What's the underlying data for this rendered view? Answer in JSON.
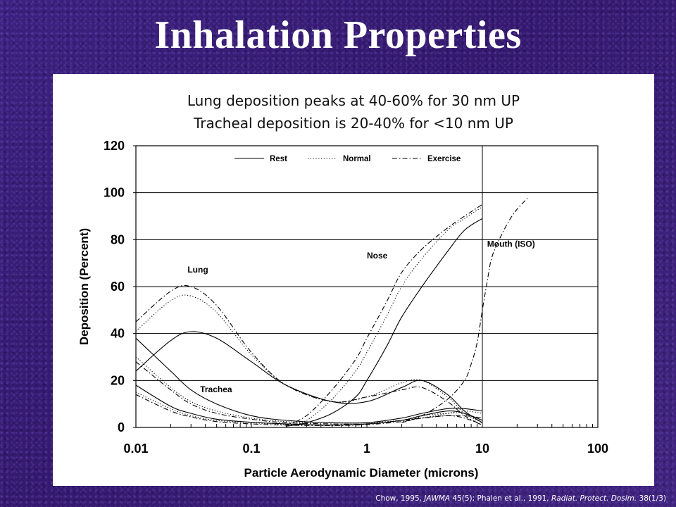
{
  "slide": {
    "title": "Inhalation Properties",
    "subtitle_lines": [
      "Lung deposition peaks at 40-60% for 30 nm UP",
      "Tracheal deposition is 20-40% for <10 nm UP"
    ],
    "citation": {
      "part1": "Chow, 1995, ",
      "journal1": "JAWMA",
      "part2": " 45(5); Phalen et al., 1991, ",
      "journal2": "Radiat. Protect. Dosim.",
      "part3": " 38(1/3)"
    }
  },
  "colors": {
    "background": "#3a1f78",
    "panel": "#ffffff",
    "line": "#000000"
  },
  "chart_data": {
    "type": "line",
    "xlabel": "Particle Aerodynamic Diameter (microns)",
    "ylabel": "Deposition (Percent)",
    "x_scale": "log",
    "xlim": [
      0.01,
      100
    ],
    "ylim": [
      0,
      120
    ],
    "x_ticks": [
      "0.01",
      "0.1",
      "1",
      "10",
      "100"
    ],
    "y_ticks": [
      "0",
      "20",
      "40",
      "60",
      "80",
      "100",
      "120"
    ],
    "grid": "horizontal",
    "legend": {
      "placement": "top",
      "entries": [
        {
          "label": "Rest",
          "style": "solid"
        },
        {
          "label": "Normal",
          "style": "dotted"
        },
        {
          "label": "Exercise",
          "style": "dashdot"
        }
      ]
    },
    "annotations": [
      {
        "text": "Lung",
        "x": 0.028,
        "y": 66
      },
      {
        "text": "Trachea",
        "x": 0.036,
        "y": 15
      },
      {
        "text": "Nose",
        "x": 1.0,
        "y": 72
      },
      {
        "text": "Mouth (ISO)",
        "x": 11,
        "y": 77
      }
    ],
    "series": [
      {
        "group": "Lung",
        "condition": "Rest",
        "style": "solid",
        "points": [
          [
            0.01,
            24
          ],
          [
            0.02,
            37
          ],
          [
            0.03,
            40.8
          ],
          [
            0.05,
            38
          ],
          [
            0.1,
            28
          ],
          [
            0.2,
            18
          ],
          [
            0.5,
            11
          ],
          [
            1,
            11
          ],
          [
            2,
            17
          ],
          [
            3,
            20
          ],
          [
            5,
            14
          ],
          [
            7,
            7
          ],
          [
            10,
            2
          ]
        ]
      },
      {
        "group": "Lung",
        "condition": "Normal",
        "style": "dotted",
        "points": [
          [
            0.01,
            41
          ],
          [
            0.02,
            54
          ],
          [
            0.03,
            56
          ],
          [
            0.05,
            49
          ],
          [
            0.1,
            31
          ],
          [
            0.2,
            18
          ],
          [
            0.5,
            11
          ],
          [
            1,
            13
          ],
          [
            2,
            19
          ],
          [
            3,
            20
          ],
          [
            5,
            13
          ],
          [
            7,
            6
          ],
          [
            10,
            2
          ]
        ]
      },
      {
        "group": "Lung",
        "condition": "Exercise",
        "style": "dashdot",
        "points": [
          [
            0.01,
            45
          ],
          [
            0.02,
            58
          ],
          [
            0.03,
            60
          ],
          [
            0.05,
            52
          ],
          [
            0.1,
            32
          ],
          [
            0.2,
            18
          ],
          [
            0.5,
            11
          ],
          [
            1,
            13
          ],
          [
            2,
            16
          ],
          [
            3,
            17
          ],
          [
            5,
            11
          ],
          [
            7,
            5
          ],
          [
            10,
            1
          ]
        ]
      },
      {
        "group": "Trachea",
        "condition": "Rest",
        "style": "solid",
        "points": [
          [
            0.01,
            38
          ],
          [
            0.02,
            24
          ],
          [
            0.03,
            16
          ],
          [
            0.05,
            10
          ],
          [
            0.1,
            5
          ],
          [
            0.2,
            3
          ],
          [
            0.5,
            2
          ],
          [
            1,
            2
          ],
          [
            2,
            4
          ],
          [
            3,
            6
          ],
          [
            5,
            8
          ],
          [
            7,
            8
          ],
          [
            10,
            7
          ]
        ]
      },
      {
        "group": "Trachea",
        "condition": "Normal",
        "style": "dotted",
        "points": [
          [
            0.01,
            30
          ],
          [
            0.02,
            17
          ],
          [
            0.03,
            11
          ],
          [
            0.05,
            7
          ],
          [
            0.1,
            4
          ],
          [
            0.2,
            2.5
          ],
          [
            0.5,
            2
          ],
          [
            1,
            2
          ],
          [
            2,
            3
          ],
          [
            3,
            4
          ],
          [
            5,
            6
          ],
          [
            7,
            7
          ],
          [
            10,
            6
          ]
        ]
      },
      {
        "group": "Trachea",
        "condition": "Exercise",
        "style": "dashdot",
        "points": [
          [
            0.01,
            28
          ],
          [
            0.02,
            16
          ],
          [
            0.03,
            10
          ],
          [
            0.05,
            6
          ],
          [
            0.1,
            3.5
          ],
          [
            0.2,
            2
          ],
          [
            0.5,
            1.5
          ],
          [
            1,
            1.5
          ],
          [
            2,
            3
          ],
          [
            3,
            4
          ],
          [
            5,
            5
          ],
          [
            7,
            5
          ],
          [
            10,
            4
          ]
        ]
      },
      {
        "group": "Trachea lower",
        "condition": "Rest",
        "style": "solid",
        "points": [
          [
            0.01,
            18
          ],
          [
            0.02,
            9
          ],
          [
            0.03,
            6
          ],
          [
            0.05,
            3.5
          ],
          [
            0.1,
            2.2
          ],
          [
            0.2,
            1.5
          ],
          [
            0.5,
            1
          ],
          [
            1,
            1.5
          ],
          [
            2,
            3
          ],
          [
            3,
            5
          ],
          [
            5,
            7
          ],
          [
            7,
            6
          ],
          [
            10,
            3
          ]
        ]
      },
      {
        "group": "Trachea lower",
        "condition": "Normal",
        "style": "dotted",
        "points": [
          [
            0.01,
            15
          ],
          [
            0.02,
            8
          ],
          [
            0.03,
            5
          ],
          [
            0.05,
            3
          ],
          [
            0.1,
            2
          ],
          [
            0.2,
            1.2
          ],
          [
            0.5,
            1
          ],
          [
            1,
            1.5
          ],
          [
            2,
            3
          ],
          [
            3,
            5
          ],
          [
            5,
            6
          ],
          [
            7,
            6
          ],
          [
            10,
            2
          ]
        ]
      },
      {
        "group": "Trachea lower",
        "condition": "Exercise",
        "style": "dashdot",
        "points": [
          [
            0.01,
            14
          ],
          [
            0.02,
            7
          ],
          [
            0.03,
            4.5
          ],
          [
            0.05,
            2.5
          ],
          [
            0.1,
            1.5
          ],
          [
            0.2,
            1
          ],
          [
            0.5,
            0.8
          ],
          [
            1,
            1.2
          ],
          [
            2,
            2.5
          ],
          [
            3,
            4
          ],
          [
            5,
            5
          ],
          [
            7,
            4
          ],
          [
            10,
            1
          ]
        ]
      },
      {
        "group": "Nose",
        "condition": "Rest",
        "style": "solid",
        "points": [
          [
            0.2,
            0.5
          ],
          [
            0.3,
            2
          ],
          [
            0.5,
            6
          ],
          [
            0.8,
            13
          ],
          [
            1,
            20
          ],
          [
            1.5,
            35
          ],
          [
            2,
            47
          ],
          [
            3,
            60
          ],
          [
            5,
            75
          ],
          [
            7,
            84
          ],
          [
            10,
            89
          ]
        ]
      },
      {
        "group": "Nose",
        "condition": "Normal",
        "style": "dotted",
        "points": [
          [
            0.2,
            0.5
          ],
          [
            0.3,
            3
          ],
          [
            0.5,
            12
          ],
          [
            0.8,
            24
          ],
          [
            1,
            32
          ],
          [
            1.5,
            48
          ],
          [
            2,
            60
          ],
          [
            3,
            72
          ],
          [
            5,
            84
          ],
          [
            7,
            89
          ],
          [
            10,
            94
          ]
        ]
      },
      {
        "group": "Nose",
        "condition": "Exercise",
        "style": "dashdot",
        "points": [
          [
            0.2,
            1
          ],
          [
            0.3,
            5
          ],
          [
            0.5,
            16
          ],
          [
            0.8,
            29
          ],
          [
            1,
            38
          ],
          [
            1.5,
            54
          ],
          [
            2,
            66
          ],
          [
            3,
            76
          ],
          [
            5,
            85
          ],
          [
            7,
            90
          ],
          [
            10,
            95
          ]
        ]
      },
      {
        "group": "Mouth (ISO)",
        "condition": "Exercise",
        "style": "dashdot",
        "points": [
          [
            2,
            2
          ],
          [
            3,
            5
          ],
          [
            5,
            12
          ],
          [
            7,
            20
          ],
          [
            8,
            27
          ],
          [
            9,
            36
          ],
          [
            10,
            50
          ],
          [
            11,
            62
          ],
          [
            12,
            72
          ],
          [
            14,
            80
          ],
          [
            17,
            88
          ],
          [
            20,
            93
          ],
          [
            25,
            98
          ]
        ]
      }
    ]
  }
}
